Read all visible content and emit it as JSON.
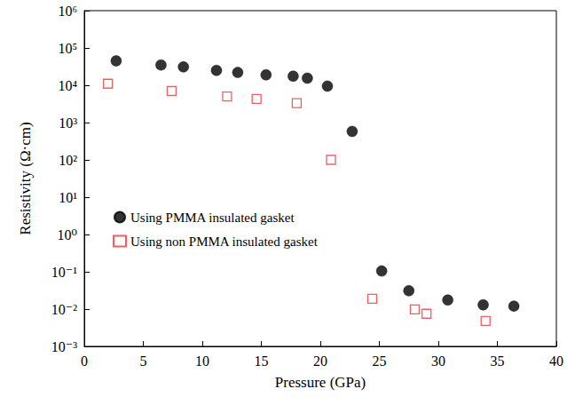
{
  "chart_data": {
    "type": "scatter",
    "x_label": "Pressure (GPa)",
    "y_label": "Resistivity (Ω·cm)",
    "log": "y",
    "grid": false,
    "legend": "left",
    "xlim": [
      0,
      40
    ],
    "xticks": [
      0,
      5,
      10,
      15,
      20,
      25,
      30,
      35,
      40
    ],
    "ylim": [
      0.001,
      1000000
    ],
    "yticks": [
      {
        "value": 0.001,
        "label": "10⁻³"
      },
      {
        "value": 0.01,
        "label": "10⁻²"
      },
      {
        "value": 0.1,
        "label": "10⁻¹"
      },
      {
        "value": 1,
        "label": "10⁰"
      },
      {
        "value": 10,
        "label": "10¹"
      },
      {
        "value": 100,
        "label": "10²"
      },
      {
        "value": 1000,
        "label": "10³"
      },
      {
        "value": 10000,
        "label": "10⁴"
      },
      {
        "value": 100000,
        "label": "10⁵"
      },
      {
        "value": 1000000,
        "label": "10⁶"
      }
    ],
    "series": [
      {
        "name": "Using PMMA insulated gasket",
        "color": "#000000",
        "marker": "circle",
        "x": [
          2.7,
          6.5,
          8.4,
          11.2,
          13.0,
          15.4,
          17.7,
          18.9,
          20.6,
          22.7,
          25.2,
          27.5,
          30.8,
          33.8,
          36.4
        ],
        "values": [
          45000,
          35000,
          31000,
          25000,
          22000,
          19000,
          17500,
          15500,
          9500,
          580,
          0.105,
          0.031,
          0.0175,
          0.013,
          0.012
        ]
      },
      {
        "name": "Using non PMMA insulated gasket",
        "color": "#e8383d",
        "marker": "open_square",
        "x": [
          2.0,
          7.4,
          12.1,
          14.6,
          18.0,
          20.9,
          24.4,
          28.0,
          29.0,
          34.0
        ],
        "values": [
          11000,
          7000,
          5000,
          4300,
          3300,
          100,
          0.019,
          0.0098,
          0.0075,
          0.0048
        ]
      }
    ]
  }
}
